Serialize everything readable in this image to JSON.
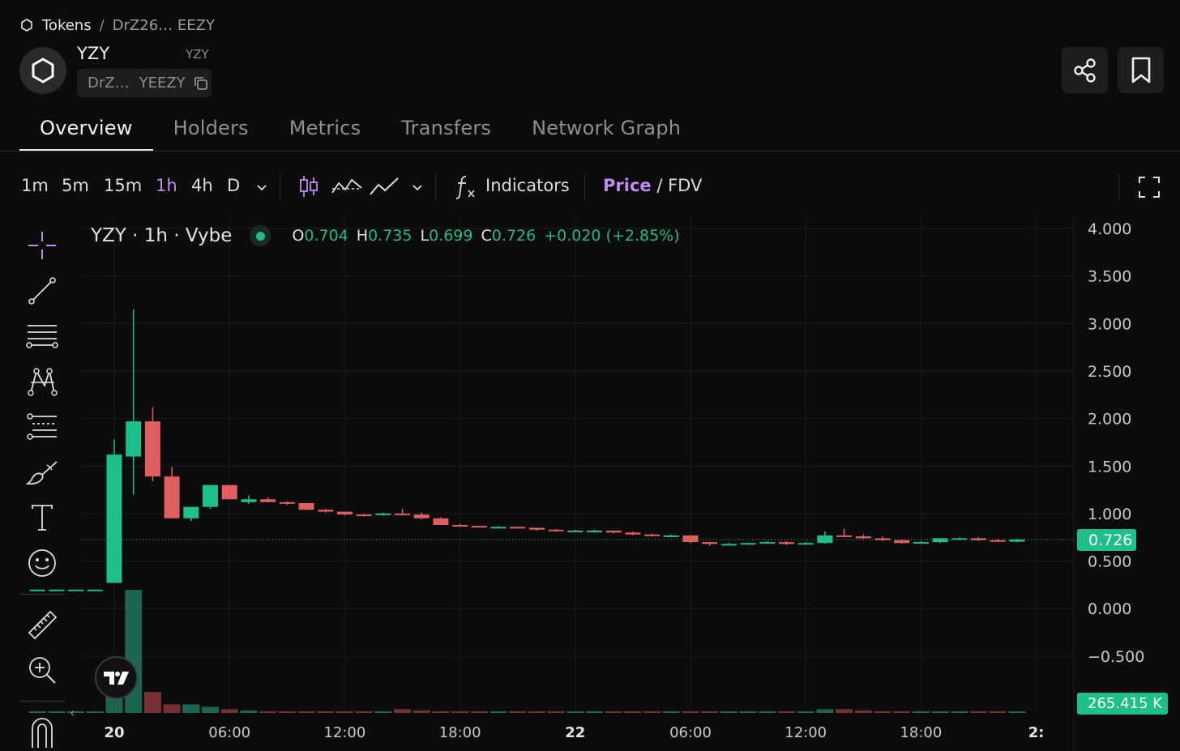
{
  "breadcrumb": {
    "home": "Tokens",
    "separator": "/",
    "current": "DrZ26… EEZY"
  },
  "token": {
    "name": "YZY",
    "symbol": "YZY",
    "address_short": "DrZ…",
    "address_name": "YEEZY"
  },
  "actions": {
    "share_icon": "share-icon",
    "bookmark_icon": "bookmark-icon"
  },
  "tabs": [
    {
      "label": "Overview",
      "active": true
    },
    {
      "label": "Holders",
      "active": false
    },
    {
      "label": "Metrics",
      "active": false
    },
    {
      "label": "Transfers",
      "active": false
    },
    {
      "label": "Network Graph",
      "active": false
    }
  ],
  "toolbar": {
    "timeframes": [
      "1m",
      "5m",
      "15m",
      "1h",
      "4h",
      "D"
    ],
    "active_timeframe": "1h",
    "indicators_label": "Indicators",
    "price_label": "Price",
    "slash": "/",
    "fdv_label": "FDV"
  },
  "legend": {
    "title": "YZY · 1h · Vybe",
    "o_key": "O",
    "o": "0.704",
    "h_key": "H",
    "h": "0.735",
    "l_key": "L",
    "l": "0.699",
    "c_key": "C",
    "c": "0.726",
    "change": "+0.020 (+2.85%)"
  },
  "colors": {
    "up": "#1fbf8a",
    "down": "#e05e5f",
    "accent": "#c28bf0",
    "bg": "#0c0c0d",
    "grid": "#1b1b1d"
  },
  "chart_data": {
    "type": "candlestick",
    "ylim": [
      -0.8,
      4.1
    ],
    "y_ticks": [
      "4.000",
      "3.500",
      "3.000",
      "2.500",
      "2.000",
      "1.500",
      "1.000",
      "0.500",
      "0.000",
      "−0.500"
    ],
    "y_tick_values": [
      4,
      3.5,
      3,
      2.5,
      2,
      1.5,
      1,
      0.5,
      0,
      -0.5
    ],
    "x_ticks": [
      "20",
      "06:00",
      "12:00",
      "18:00",
      "22",
      "06:00",
      "12:00",
      "18:00",
      "2:"
    ],
    "x_tick_bold": [
      true,
      false,
      false,
      false,
      true,
      false,
      false,
      false,
      true
    ],
    "x_tick_hours": [
      0,
      6,
      12,
      18,
      24,
      30,
      36,
      42,
      48
    ],
    "current_price_label": "0.726",
    "current_price": 0.726,
    "volume_label": "265.415 K",
    "candles": [
      {
        "h": -4,
        "o": 0.2,
        "c": 0.2,
        "hi": 0.2,
        "lo": 0.2,
        "v": 0
      },
      {
        "h": -3,
        "o": 0.2,
        "c": 0.2,
        "hi": 0.2,
        "lo": 0.2,
        "v": 0
      },
      {
        "h": -2,
        "o": 0.2,
        "c": 0.2,
        "hi": 0.2,
        "lo": 0.2,
        "v": 0
      },
      {
        "h": -1,
        "o": 0.2,
        "c": 0.2,
        "hi": 0.2,
        "lo": 0.2,
        "v": 0
      },
      {
        "h": 0,
        "o": 0.27,
        "c": 1.62,
        "hi": 1.78,
        "lo": 0.27,
        "v": 0.27
      },
      {
        "h": 1,
        "o": 1.6,
        "c": 1.97,
        "hi": 3.15,
        "lo": 1.2,
        "v": 1.0
      },
      {
        "h": 2,
        "o": 1.97,
        "c": 1.39,
        "hi": 2.12,
        "lo": 1.34,
        "v": 0.17
      },
      {
        "h": 3,
        "o": 1.39,
        "c": 0.95,
        "hi": 1.49,
        "lo": 0.95,
        "v": 0.07
      },
      {
        "h": 4,
        "o": 0.95,
        "c": 1.07,
        "hi": 1.07,
        "lo": 0.92,
        "v": 0.07
      },
      {
        "h": 5,
        "o": 1.07,
        "c": 1.3,
        "hi": 1.3,
        "lo": 1.05,
        "v": 0.05
      },
      {
        "h": 6,
        "o": 1.3,
        "c": 1.15,
        "hi": 1.3,
        "lo": 1.15,
        "v": 0.03
      },
      {
        "h": 7,
        "o": 1.12,
        "c": 1.15,
        "hi": 1.19,
        "lo": 1.1,
        "v": 0.02
      },
      {
        "h": 8,
        "o": 1.15,
        "c": 1.12,
        "hi": 1.17,
        "lo": 1.12,
        "v": 0.01
      },
      {
        "h": 9,
        "o": 1.12,
        "c": 1.11,
        "hi": 1.13,
        "lo": 1.09,
        "v": 0.01
      },
      {
        "h": 10,
        "o": 1.11,
        "c": 1.04,
        "hi": 1.11,
        "lo": 1.04,
        "v": 0.01
      },
      {
        "h": 11,
        "o": 1.04,
        "c": 1.02,
        "hi": 1.05,
        "lo": 1.01,
        "v": 0.01
      },
      {
        "h": 12,
        "o": 1.02,
        "c": 0.99,
        "hi": 1.02,
        "lo": 0.98,
        "v": 0.01
      },
      {
        "h": 13,
        "o": 0.99,
        "c": 0.98,
        "hi": 1.0,
        "lo": 0.97,
        "v": 0.01
      },
      {
        "h": 14,
        "o": 0.99,
        "c": 1.0,
        "hi": 1.01,
        "lo": 0.98,
        "v": 0.01
      },
      {
        "h": 15,
        "o": 1.0,
        "c": 0.99,
        "hi": 1.05,
        "lo": 0.98,
        "v": 0.03
      },
      {
        "h": 16,
        "o": 0.99,
        "c": 0.95,
        "hi": 1.01,
        "lo": 0.94,
        "v": 0.02
      },
      {
        "h": 17,
        "o": 0.95,
        "c": 0.88,
        "hi": 0.96,
        "lo": 0.88,
        "v": 0.01
      },
      {
        "h": 18,
        "o": 0.88,
        "c": 0.87,
        "hi": 0.89,
        "lo": 0.86,
        "v": 0.01
      },
      {
        "h": 19,
        "o": 0.87,
        "c": 0.86,
        "hi": 0.87,
        "lo": 0.85,
        "v": 0.01
      },
      {
        "h": 20,
        "o": 0.86,
        "c": 0.86,
        "hi": 0.87,
        "lo": 0.85,
        "v": 0.01
      },
      {
        "h": 21,
        "o": 0.86,
        "c": 0.85,
        "hi": 0.86,
        "lo": 0.84,
        "v": 0.01
      },
      {
        "h": 22,
        "o": 0.85,
        "c": 0.83,
        "hi": 0.85,
        "lo": 0.82,
        "v": 0.01
      },
      {
        "h": 23,
        "o": 0.83,
        "c": 0.82,
        "hi": 0.84,
        "lo": 0.81,
        "v": 0.01
      },
      {
        "h": 24,
        "o": 0.82,
        "c": 0.82,
        "hi": 0.83,
        "lo": 0.81,
        "v": 0.01
      },
      {
        "h": 25,
        "o": 0.81,
        "c": 0.82,
        "hi": 0.83,
        "lo": 0.8,
        "v": 0.01
      },
      {
        "h": 26,
        "o": 0.82,
        "c": 0.8,
        "hi": 0.82,
        "lo": 0.79,
        "v": 0.01
      },
      {
        "h": 27,
        "o": 0.8,
        "c": 0.78,
        "hi": 0.81,
        "lo": 0.77,
        "v": 0.01
      },
      {
        "h": 28,
        "o": 0.78,
        "c": 0.77,
        "hi": 0.79,
        "lo": 0.76,
        "v": 0.01
      },
      {
        "h": 29,
        "o": 0.77,
        "c": 0.77,
        "hi": 0.78,
        "lo": 0.76,
        "v": 0.01
      },
      {
        "h": 30,
        "o": 0.77,
        "c": 0.7,
        "hi": 0.77,
        "lo": 0.69,
        "v": 0.01
      },
      {
        "h": 31,
        "o": 0.7,
        "c": 0.68,
        "hi": 0.7,
        "lo": 0.66,
        "v": 0.01
      },
      {
        "h": 32,
        "o": 0.68,
        "c": 0.68,
        "hi": 0.69,
        "lo": 0.67,
        "v": 0.01
      },
      {
        "h": 33,
        "o": 0.68,
        "c": 0.69,
        "hi": 0.69,
        "lo": 0.67,
        "v": 0.01
      },
      {
        "h": 34,
        "o": 0.69,
        "c": 0.7,
        "hi": 0.71,
        "lo": 0.68,
        "v": 0.01
      },
      {
        "h": 35,
        "o": 0.7,
        "c": 0.68,
        "hi": 0.71,
        "lo": 0.67,
        "v": 0.01
      },
      {
        "h": 36,
        "o": 0.68,
        "c": 0.69,
        "hi": 0.7,
        "lo": 0.67,
        "v": 0.01
      },
      {
        "h": 37,
        "o": 0.69,
        "c": 0.77,
        "hi": 0.81,
        "lo": 0.68,
        "v": 0.03
      },
      {
        "h": 38,
        "o": 0.77,
        "c": 0.76,
        "hi": 0.84,
        "lo": 0.75,
        "v": 0.03
      },
      {
        "h": 39,
        "o": 0.76,
        "c": 0.74,
        "hi": 0.78,
        "lo": 0.73,
        "v": 0.02
      },
      {
        "h": 40,
        "o": 0.74,
        "c": 0.72,
        "hi": 0.76,
        "lo": 0.71,
        "v": 0.01
      },
      {
        "h": 41,
        "o": 0.72,
        "c": 0.69,
        "hi": 0.73,
        "lo": 0.68,
        "v": 0.01
      },
      {
        "h": 42,
        "o": 0.69,
        "c": 0.7,
        "hi": 0.71,
        "lo": 0.68,
        "v": 0.01
      },
      {
        "h": 43,
        "o": 0.7,
        "c": 0.74,
        "hi": 0.74,
        "lo": 0.69,
        "v": 0.01
      },
      {
        "h": 44,
        "o": 0.73,
        "c": 0.74,
        "hi": 0.75,
        "lo": 0.72,
        "v": 0.01
      },
      {
        "h": 45,
        "o": 0.74,
        "c": 0.72,
        "hi": 0.75,
        "lo": 0.71,
        "v": 0.01
      },
      {
        "h": 46,
        "o": 0.72,
        "c": 0.71,
        "hi": 0.73,
        "lo": 0.7,
        "v": 0.01
      },
      {
        "h": 47,
        "o": 0.704,
        "c": 0.726,
        "hi": 0.735,
        "lo": 0.699,
        "v": 0.01
      }
    ]
  }
}
